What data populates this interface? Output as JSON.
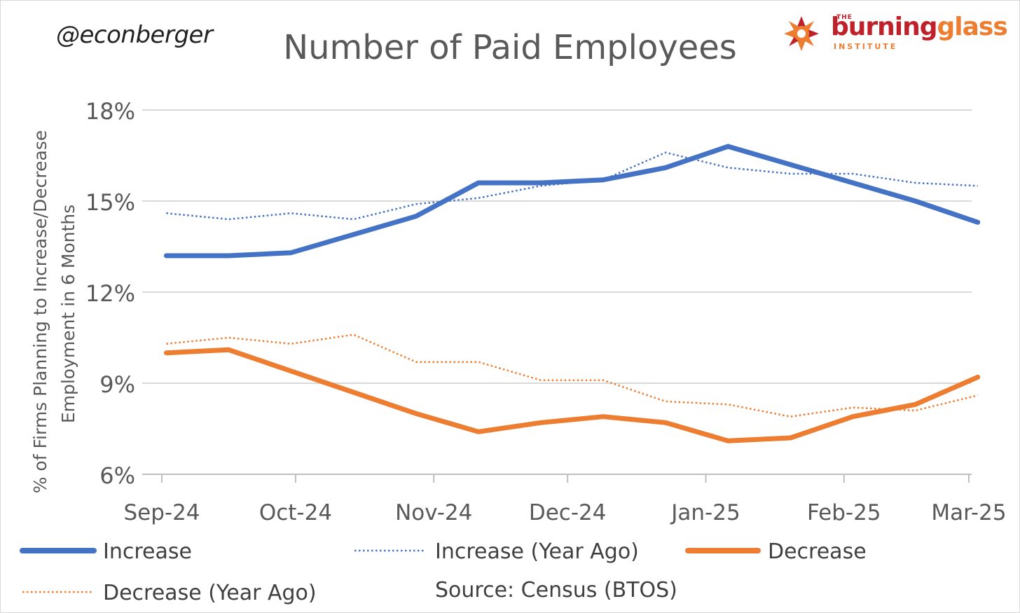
{
  "handle": "@econberger",
  "logo": {
    "the": "THE",
    "word_part1": "burning",
    "word_part2": "glass",
    "institute": "INSTITUTE"
  },
  "source": "Source: Census (BTOS)",
  "colors": {
    "increase": "#4472c4",
    "decrease": "#ed7d31",
    "grid": "#d9d9d9",
    "text": "#595959"
  },
  "chart_data": {
    "type": "line",
    "title": "Number of Paid Employees",
    "ylabel_line1": "% of Firms Planning to Increase/Decrease",
    "ylabel_line2": "Employment in 6 Months",
    "xlabel": "",
    "ylim": [
      6,
      18
    ],
    "yticks": [
      "6%",
      "9%",
      "12%",
      "15%",
      "18%"
    ],
    "ytick_values": [
      6,
      9,
      12,
      15,
      18
    ],
    "x_dates": [
      "2024-09-02",
      "2024-09-16",
      "2024-09-30",
      "2024-10-14",
      "2024-10-28",
      "2024-11-11",
      "2024-11-25",
      "2024-12-09",
      "2024-12-23",
      "2025-01-06",
      "2025-01-20",
      "2025-02-03",
      "2025-02-17",
      "2025-03-03"
    ],
    "xticks": [
      "Sep-24",
      "Oct-24",
      "Nov-24",
      "Dec-24",
      "Jan-25",
      "Feb-25",
      "Mar-25"
    ],
    "xtick_dates": [
      "2024-09-01",
      "2024-10-01",
      "2024-11-01",
      "2024-12-01",
      "2025-01-01",
      "2025-02-01",
      "2025-03-01"
    ],
    "grid": true,
    "legend_position": "bottom",
    "series": [
      {
        "name": "Increase",
        "style": "solid",
        "color": "#4472c4",
        "values": [
          13.2,
          13.2,
          13.3,
          13.9,
          14.5,
          15.6,
          15.6,
          15.7,
          16.1,
          16.8,
          16.2,
          15.6,
          15.0,
          14.3
        ]
      },
      {
        "name": "Increase (Year Ago)",
        "style": "dotted",
        "color": "#4472c4",
        "values": [
          14.6,
          14.4,
          14.6,
          14.4,
          14.9,
          15.1,
          15.5,
          15.7,
          16.6,
          16.1,
          15.9,
          15.9,
          15.6,
          15.5
        ]
      },
      {
        "name": "Decrease",
        "style": "solid",
        "color": "#ed7d31",
        "values": [
          10.0,
          10.1,
          9.4,
          8.7,
          8.0,
          7.4,
          7.7,
          7.9,
          7.7,
          7.1,
          7.2,
          7.9,
          8.3,
          9.2
        ]
      },
      {
        "name": "Decrease (Year Ago)",
        "style": "dotted",
        "color": "#ed7d31",
        "values": [
          10.3,
          10.5,
          10.3,
          10.6,
          9.7,
          9.7,
          9.1,
          9.1,
          8.4,
          8.3,
          7.9,
          8.2,
          8.1,
          8.6
        ]
      }
    ]
  }
}
